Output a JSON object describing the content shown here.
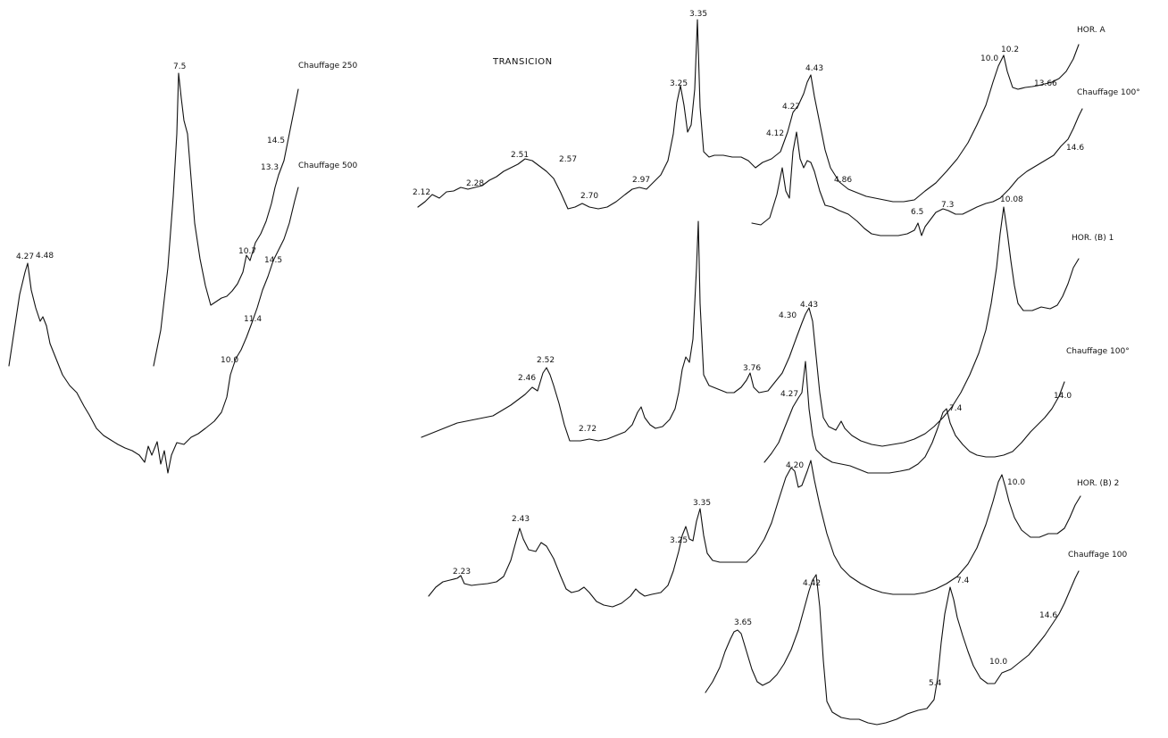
{
  "chart_data": {
    "type": "line",
    "title": "TRANSICION",
    "xlabel": "",
    "ylabel": "",
    "grid": false,
    "series": [
      {
        "name": "Chauffage 250",
        "peaks": [
          "7.5",
          "10.7",
          "13.3",
          "14.5"
        ]
      },
      {
        "name": "Chauffage 500",
        "peaks": [
          "4.27",
          "4.48",
          "10.0",
          "11.4",
          "14.5"
        ]
      },
      {
        "name": "HOR. A",
        "peaks": [
          "2.12",
          "2.28",
          "2.51",
          "2.57",
          "2.70",
          "2.97",
          "3.25",
          "3.35",
          "4.12",
          "4.27",
          "4.43",
          "10.0",
          "10.2",
          "13.66"
        ]
      },
      {
        "name": "Chauffage 100°",
        "peaks": [
          "4.86",
          "6.5",
          "7.3",
          "10.08",
          "14.6"
        ]
      },
      {
        "name": "HOR. (B) 1",
        "peaks": [
          "2.46",
          "2.52",
          "2.72",
          "3.76",
          "4.30",
          "4.43"
        ]
      },
      {
        "name": "Chauffage 100°",
        "peaks": [
          "4.27",
          "7.4",
          "14.0"
        ]
      },
      {
        "name": "HOR. (B) 2",
        "peaks": [
          "2.23",
          "2.43",
          "3.25",
          "3.35",
          "4.20",
          "10.0"
        ]
      },
      {
        "name": "Chauffage 100",
        "peaks": [
          "3.65",
          "4.42",
          "5.4",
          "7.4",
          "10.0",
          "14.6"
        ]
      }
    ]
  }
}
